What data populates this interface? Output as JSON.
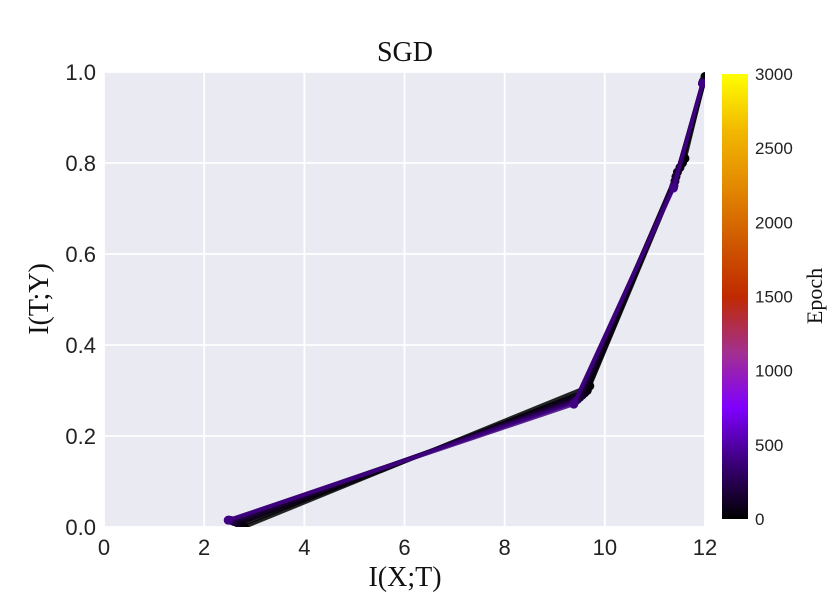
{
  "chart_data": {
    "type": "line",
    "title": "SGD",
    "xlabel": "I(X;T)",
    "ylabel": "I(T;Y)",
    "xlim": [
      0,
      12
    ],
    "ylim": [
      0,
      1.0
    ],
    "xticks": [
      0,
      2,
      4,
      6,
      8,
      10,
      12
    ],
    "yticks": [
      0.0,
      0.2,
      0.4,
      0.6,
      0.8,
      1.0
    ],
    "xtick_labels": [
      "0",
      "2",
      "4",
      "6",
      "8",
      "10",
      "12"
    ],
    "ytick_labels": [
      "0.0",
      "0.2",
      "0.4",
      "0.6",
      "0.8",
      "1.0"
    ],
    "grid": true,
    "background_color": "#eaeaf2",
    "colorbar": {
      "label": "Epoch",
      "range": [
        0,
        3000
      ],
      "ticks": [
        0,
        500,
        1000,
        1500,
        2000,
        2500,
        3000
      ],
      "tick_labels": [
        "0",
        "500",
        "1000",
        "1500",
        "2000",
        "2500",
        "3000"
      ],
      "colormap": "gnuplot",
      "colors": [
        "#000000",
        "#3a0078",
        "#8000ff",
        "#a3308f",
        "#c02a00",
        "#d05a00",
        "#e38a00",
        "#f2b900",
        "#ffff00"
      ]
    },
    "series": [
      {
        "epoch": 0,
        "x": [
          12.0,
          11.6,
          9.7,
          2.8
        ],
        "y": [
          0.99,
          0.81,
          0.31,
          0.0
        ]
      },
      {
        "epoch": 25,
        "x": [
          12.0,
          11.55,
          9.65,
          2.75
        ],
        "y": [
          0.985,
          0.8,
          0.3,
          0.005
        ]
      },
      {
        "epoch": 50,
        "x": [
          11.98,
          11.5,
          9.6,
          2.7
        ],
        "y": [
          0.98,
          0.79,
          0.295,
          0.008
        ]
      },
      {
        "epoch": 100,
        "x": [
          11.97,
          11.45,
          9.55,
          2.65
        ],
        "y": [
          0.98,
          0.78,
          0.29,
          0.01
        ]
      },
      {
        "epoch": 150,
        "x": [
          11.96,
          11.42,
          9.5,
          2.6
        ],
        "y": [
          0.978,
          0.77,
          0.285,
          0.012
        ]
      },
      {
        "epoch": 200,
        "x": [
          11.95,
          11.4,
          9.45,
          2.55
        ],
        "y": [
          0.975,
          0.76,
          0.28,
          0.014
        ]
      },
      {
        "epoch": 300,
        "x": [
          11.95,
          11.38,
          9.4,
          2.5
        ],
        "y": [
          0.975,
          0.75,
          0.275,
          0.015
        ]
      },
      {
        "epoch": 400,
        "x": [
          11.95,
          11.37,
          9.38,
          2.48
        ],
        "y": [
          0.975,
          0.745,
          0.27,
          0.015
        ]
      }
    ]
  }
}
